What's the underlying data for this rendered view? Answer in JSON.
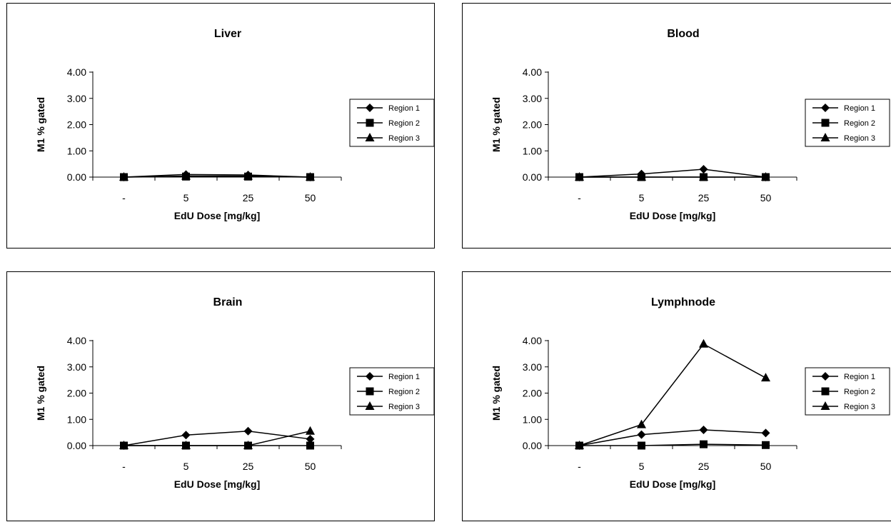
{
  "chart_data": [
    {
      "type": "line",
      "title": "Liver",
      "xlabel": "EdU Dose [mg/kg]",
      "ylabel": "M1 % gated",
      "categories": [
        "-",
        "5",
        "25",
        "50"
      ],
      "y_ticks": [
        "0.00",
        "1.00",
        "2.00",
        "3.00",
        "4.00"
      ],
      "ylim": [
        0,
        4
      ],
      "grid": false,
      "legend": "right",
      "series": [
        {
          "name": "Region 1",
          "marker": "diamond",
          "values": [
            0.0,
            0.1,
            0.08,
            0.0
          ]
        },
        {
          "name": "Region 2",
          "marker": "square",
          "values": [
            0.0,
            0.02,
            0.02,
            0.0
          ]
        },
        {
          "name": "Region 3",
          "marker": "triangle",
          "values": [
            0.0,
            0.04,
            0.04,
            0.0
          ]
        }
      ]
    },
    {
      "type": "line",
      "title": "Blood",
      "xlabel": "EdU Dose [mg/kg]",
      "ylabel": "M1 % gated",
      "categories": [
        "-",
        "5",
        "25",
        "50"
      ],
      "y_ticks": [
        "0.00",
        "1.00",
        "2.00",
        "3.00",
        "4.00"
      ],
      "ylim": [
        0,
        4
      ],
      "grid": false,
      "legend": "right",
      "series": [
        {
          "name": "Region 1",
          "marker": "diamond",
          "values": [
            0.0,
            0.12,
            0.3,
            0.0
          ]
        },
        {
          "name": "Region 2",
          "marker": "square",
          "values": [
            0.0,
            0.0,
            0.0,
            0.0
          ]
        },
        {
          "name": "Region 3",
          "marker": "triangle",
          "values": [
            0.0,
            0.0,
            0.0,
            0.0
          ]
        }
      ]
    },
    {
      "type": "line",
      "title": "Brain",
      "xlabel": "EdU Dose [mg/kg]",
      "ylabel": "M1 % gated",
      "categories": [
        "-",
        "5",
        "25",
        "50"
      ],
      "y_ticks": [
        "0.00",
        "1.00",
        "2.00",
        "3.00",
        "4.00"
      ],
      "ylim": [
        0,
        4
      ],
      "grid": false,
      "legend": "right",
      "series": [
        {
          "name": "Region 1",
          "marker": "diamond",
          "values": [
            0.0,
            0.4,
            0.55,
            0.25
          ]
        },
        {
          "name": "Region 2",
          "marker": "square",
          "values": [
            0.0,
            0.0,
            0.0,
            0.0
          ]
        },
        {
          "name": "Region 3",
          "marker": "triangle",
          "values": [
            0.0,
            0.0,
            0.0,
            0.55
          ]
        }
      ]
    },
    {
      "type": "line",
      "title": "Lymphnode",
      "xlabel": "EdU Dose [mg/kg]",
      "ylabel": "M1 % gated",
      "categories": [
        "-",
        "5",
        "25",
        "50"
      ],
      "y_ticks": [
        "0.00",
        "1.00",
        "2.00",
        "3.00",
        "4.00"
      ],
      "ylim": [
        0,
        4
      ],
      "grid": false,
      "legend": "right",
      "series": [
        {
          "name": "Region 1",
          "marker": "diamond",
          "values": [
            0.0,
            0.42,
            0.6,
            0.48
          ]
        },
        {
          "name": "Region 2",
          "marker": "square",
          "values": [
            0.0,
            0.0,
            0.05,
            0.02
          ]
        },
        {
          "name": "Region 3",
          "marker": "triangle",
          "values": [
            0.0,
            0.8,
            3.87,
            2.58
          ]
        }
      ]
    }
  ]
}
